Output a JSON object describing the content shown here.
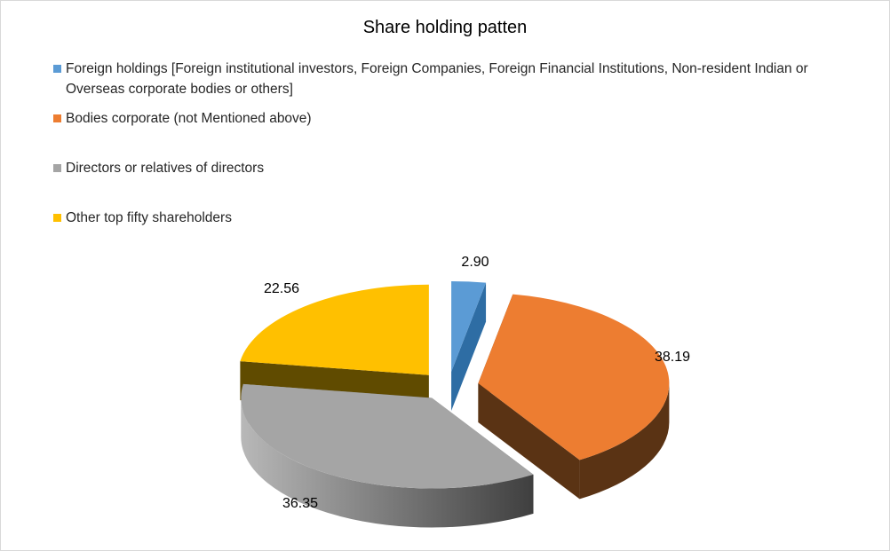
{
  "chart_data": {
    "type": "pie",
    "title": "Share holding patten",
    "categories": [
      "Foreign holdings [Foreign institutional investors, Foreign Companies, Foreign Financial Institutions, Non-resident Indian or Overseas corporate bodies or others]",
      "Bodies corporate (not Mentioned above)",
      "Directors or relatives of directors",
      "Other top fifty shareholders"
    ],
    "values": [
      2.9,
      38.19,
      36.35,
      22.56
    ],
    "labels": [
      "2.90",
      "38.19",
      "36.35",
      "22.56"
    ],
    "colors": [
      "#5b9bd5",
      "#ed7d31",
      "#a5a5a5",
      "#ffc000"
    ],
    "exploded": true,
    "three_d": true,
    "legend_position": "top"
  }
}
